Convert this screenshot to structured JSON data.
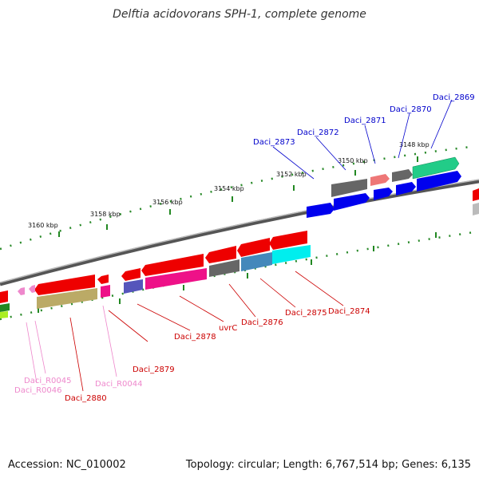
{
  "title": "Delftia acidovorans SPH-1, complete genome",
  "footer": {
    "accession": "Accession: NC_010002",
    "summary": "Topology: circular; Length: 6,767,514 bp; Genes: 6,135"
  },
  "colors": {
    "forward_label": "#0000cc",
    "reverse_label": "#cc0000",
    "rna_label": "#ee88cc",
    "backbone": "#888888",
    "ticks": "#228822"
  },
  "ticks": [
    {
      "label": "3148 kbp"
    },
    {
      "label": "3150 kbp"
    },
    {
      "label": "3152 kbp"
    },
    {
      "label": "3154 kbp"
    },
    {
      "label": "3156 kbp"
    },
    {
      "label": "3158 kbp"
    },
    {
      "label": "3160 kbp"
    }
  ],
  "gene_labels": {
    "forward": [
      "Daci_2869",
      "Daci_2870",
      "Daci_2871",
      "Daci_2872",
      "Daci_2873"
    ],
    "reverse": [
      "Daci_2874",
      "Daci_2875",
      "Daci_2876",
      "uvrC",
      "Daci_2878",
      "Daci_2879",
      "Daci_2880"
    ],
    "rna": [
      "Daci_R0044",
      "Daci_R0045",
      "Daci_R0046"
    ]
  }
}
